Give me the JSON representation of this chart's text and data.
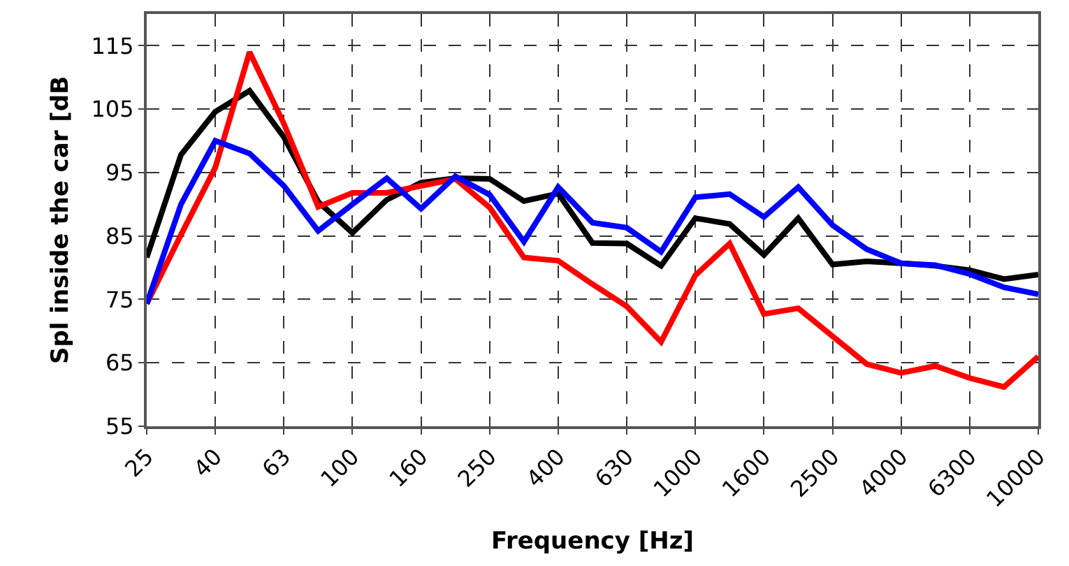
{
  "chart_data": {
    "type": "line",
    "xlabel": "Frequency [Hz]",
    "ylabel": "Spl inside the car [dB",
    "categories": [
      "25",
      null,
      "40",
      null,
      "63",
      null,
      "100",
      null,
      "160",
      null,
      "250",
      null,
      "400",
      null,
      "630",
      null,
      "1000",
      null,
      "1600",
      null,
      "2500",
      null,
      "4000",
      null,
      "6300",
      null,
      "10000"
    ],
    "series": [
      {
        "color": "#000000",
        "values": [
          81.6,
          97.8,
          104.6,
          107.9,
          100.6,
          90.4,
          85.5,
          90.7,
          93.4,
          94.1,
          94,
          90.5,
          91.7,
          83.9,
          83.8,
          80.3,
          87.8,
          86.9,
          82,
          87.8,
          80.5,
          81,
          80.7,
          80.3,
          79.6,
          78.2,
          78.9
        ]
      },
      {
        "color": "#ff0000",
        "values": [
          74.3,
          85.2,
          95.8,
          114,
          102.7,
          89.6,
          91.8,
          91.8,
          92.9,
          94,
          89.5,
          81.6,
          81.1,
          77.4,
          73.9,
          68.3,
          78.8,
          83.8,
          72.7,
          73.6,
          69.2,
          64.8,
          63.4,
          64.5,
          62.6,
          61.2,
          66
        ]
      },
      {
        "color": "#0000ff",
        "values": [
          74.3,
          90,
          100,
          98,
          92.9,
          85.8,
          90,
          94.1,
          89.3,
          94.4,
          91.5,
          84.1,
          92.7,
          87.1,
          86.3,
          82.5,
          91.1,
          91.6,
          88,
          92.7,
          86.7,
          82.9,
          80.7,
          80.4,
          79,
          76.9,
          75.8
        ]
      }
    ],
    "ylim": [
      55,
      120
    ],
    "yticks": [
      55,
      65,
      75,
      85,
      95,
      105,
      115
    ],
    "grid": true,
    "marker": "none",
    "line_style": "solid"
  }
}
